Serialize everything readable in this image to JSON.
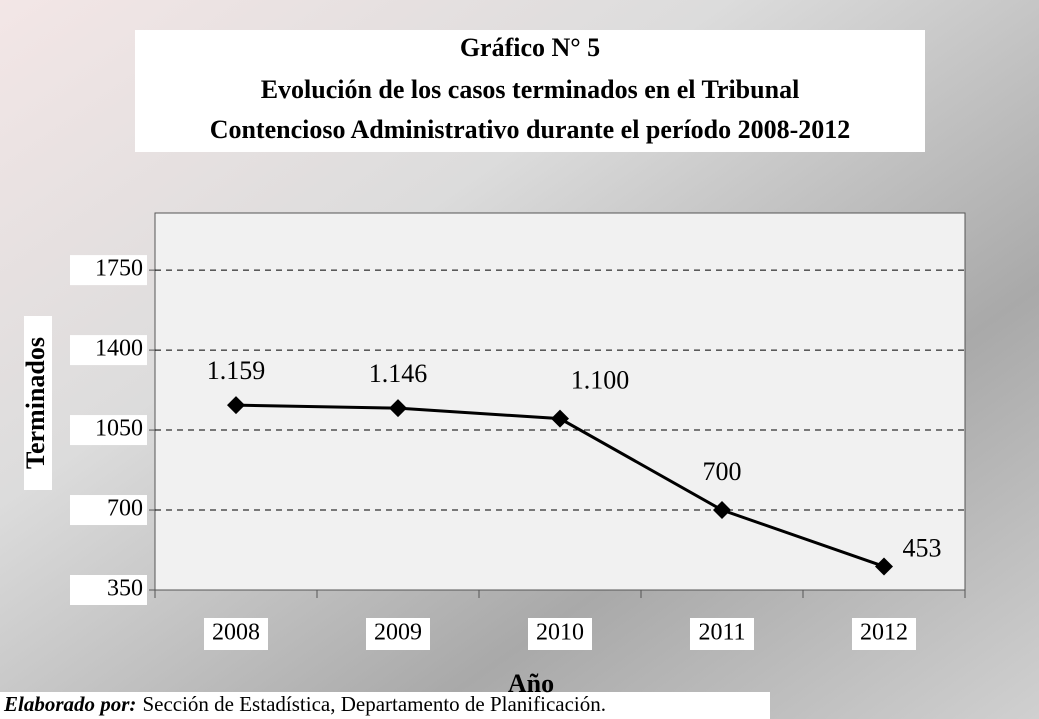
{
  "chart_data": {
    "type": "line",
    "title": [
      "Gráfico N° 5",
      "Evolución de los casos terminados en el Tribunal",
      "Contencioso Administrativo durante el período 2008-2012"
    ],
    "x_label": "Año",
    "y_label": "Terminados",
    "categories": [
      "2008",
      "2009",
      "2010",
      "2011",
      "2012"
    ],
    "values": [
      1159,
      1146,
      1100,
      700,
      453
    ],
    "value_labels": [
      "1.159",
      "1.146",
      "1.100",
      "700",
      "453"
    ],
    "color": "#000000",
    "ylim": [
      350,
      2000
    ],
    "yticks": [
      350,
      700,
      1050,
      1400,
      1750
    ],
    "grid": true,
    "source_label": "Elaborado por:",
    "source": "Sección de Estadística, Departamento de Planificación."
  }
}
